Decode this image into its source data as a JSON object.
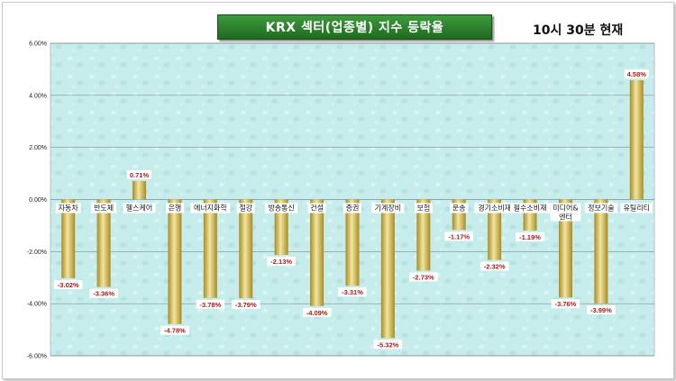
{
  "header": {
    "title": "KRX 섹터(업종별) 지수 등락율",
    "time": "10시 30분 현재"
  },
  "colors": {
    "plot_bg": "#c6ecec",
    "bar_light": "#f3e5a0",
    "bar_dark": "#b59a2c",
    "value_label": "#b01818",
    "title_bg": "#2e8b2e"
  },
  "chart_data": {
    "type": "bar",
    "title": "KRX 섹터(업종별) 지수 등락율",
    "xlabel": "",
    "ylabel": "",
    "ylim": [
      -6,
      6
    ],
    "yticks": [
      "6.00%",
      "4.00%",
      "2.00%",
      "0.00%",
      "-2.00%",
      "-4.00%",
      "-6.00%"
    ],
    "grid": true,
    "categories": [
      "자동차",
      "반도체",
      "헬스케어",
      "은행",
      "에너지화학",
      "철강",
      "방송통신",
      "건설",
      "증권",
      "기계장비",
      "보험",
      "운송",
      "경기소비재",
      "필수소비재",
      "미디어&엔터",
      "정보기술",
      "유틸리티"
    ],
    "values": [
      -3.02,
      -3.36,
      0.71,
      -4.78,
      -3.78,
      -3.79,
      -2.13,
      -4.09,
      -3.31,
      -5.32,
      -2.73,
      -1.17,
      -2.32,
      -1.19,
      -3.76,
      -3.99,
      4.58
    ],
    "value_labels": [
      "-3.02%",
      "-3.36%",
      "0.71%",
      "-4.78%",
      "-3.78%",
      "-3.79%",
      "-2.13%",
      "-4.09%",
      "-3.31%",
      "-5.32%",
      "-2.73%",
      "-1.17%",
      "-2.32%",
      "-1.19%",
      "-3.76%",
      "-3.99%",
      "4.58%"
    ]
  }
}
